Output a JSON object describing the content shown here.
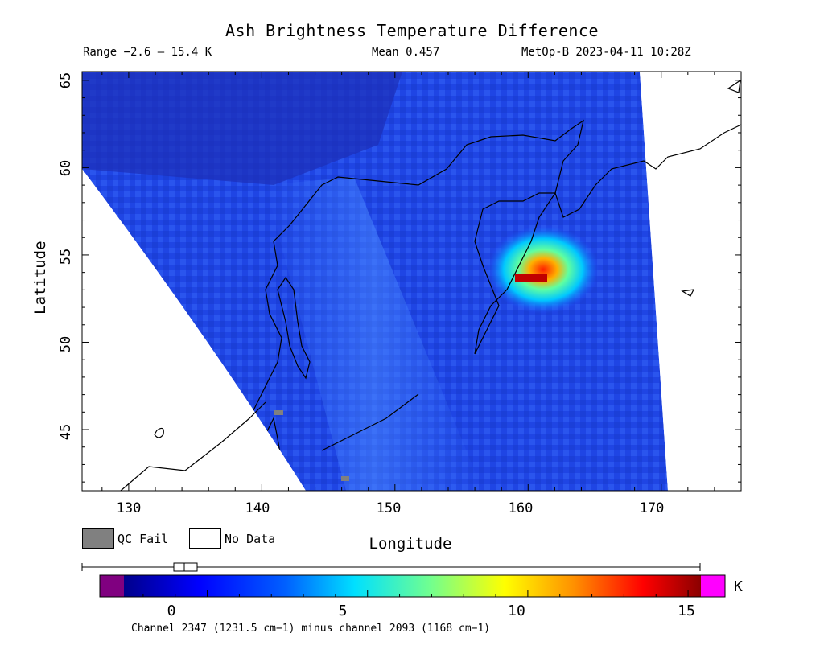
{
  "title": "Ash Brightness Temperature Difference",
  "range_label": "Range −2.6 – 15.4 K",
  "mean_label": "Mean 0.457",
  "satellite_label": "MetOp-B 2023-04-11 10:28Z",
  "y_axis_label": "Latitude",
  "x_axis_label": "Longitude",
  "y_ticks": [
    "45",
    "50",
    "55",
    "60",
    "65"
  ],
  "x_ticks": [
    "130",
    "140",
    "150",
    "160",
    "170"
  ],
  "legend": {
    "qc_fail_label": "QC Fail",
    "no_data_label": "No Data",
    "qc_fail_color": "#808080",
    "no_data_color": "#ffffff"
  },
  "colorbar": {
    "unit": "K",
    "ticks": [
      "0",
      "5",
      "10",
      "15"
    ],
    "tick_values": [
      0,
      5,
      10,
      15
    ],
    "min": -2.6,
    "max": 15.4,
    "below_color": "#800080",
    "above_color": "#ff00ff",
    "caption": "Channel 2347 (1231.5 cm−1) minus channel 2093 (1168 cm−1)"
  },
  "map": {
    "lon_range": [
      126.5,
      176
    ],
    "lat_range": [
      41.5,
      65.5
    ],
    "background_color": "#1a3de0",
    "ash_plume_center": {
      "lon": 161.5,
      "lat": 54.2
    },
    "ash_plume_max": 15.4
  }
}
